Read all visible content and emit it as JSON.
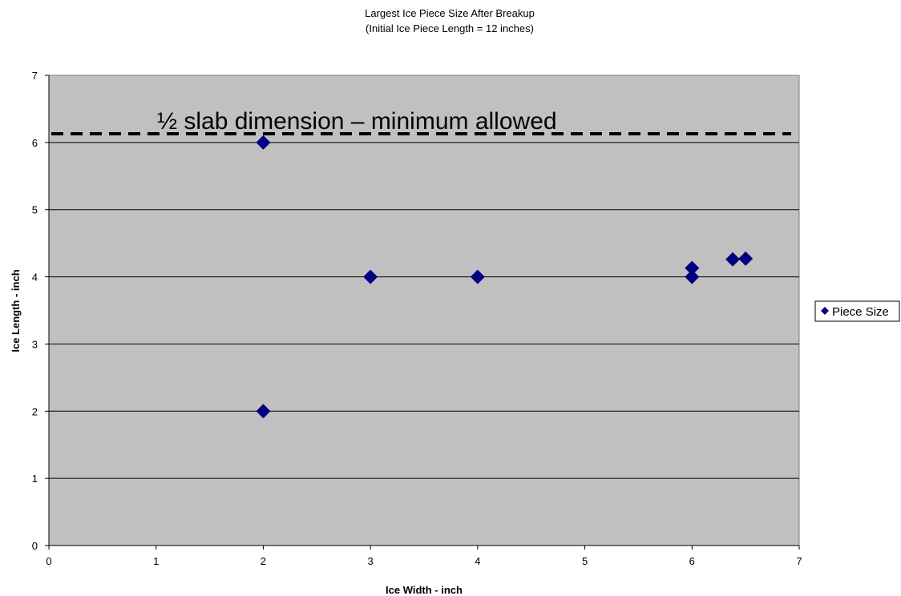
{
  "chart_data": {
    "type": "scatter",
    "title": "Largest Ice Piece Size After Breakup",
    "subtitle": "(Initial Ice Piece Length = 12 inches)",
    "xlabel": "Ice Width - inch",
    "ylabel": "Ice Length - inch",
    "xlim": [
      0,
      7
    ],
    "ylim": [
      0,
      7
    ],
    "x_ticks": [
      0,
      1,
      2,
      3,
      4,
      5,
      6,
      7
    ],
    "y_ticks": [
      0,
      1,
      2,
      3,
      4,
      5,
      6,
      7
    ],
    "grid": "horizontal",
    "plot_background": "#c0c0c0",
    "legend_position": "right",
    "series": [
      {
        "name": "Piece Size",
        "marker": "diamond",
        "color": "#000080",
        "points": [
          {
            "x": 2,
            "y": 6
          },
          {
            "x": 2,
            "y": 2
          },
          {
            "x": 3,
            "y": 4
          },
          {
            "x": 4,
            "y": 4
          },
          {
            "x": 6,
            "y": 4.13
          },
          {
            "x": 6,
            "y": 4
          },
          {
            "x": 6.38,
            "y": 4.26
          },
          {
            "x": 6.5,
            "y": 4.27
          }
        ]
      }
    ],
    "reference_line": {
      "y": 6.13,
      "style": "dashed",
      "color": "#000000",
      "label": "½ slab dimension – minimum allowed"
    }
  }
}
